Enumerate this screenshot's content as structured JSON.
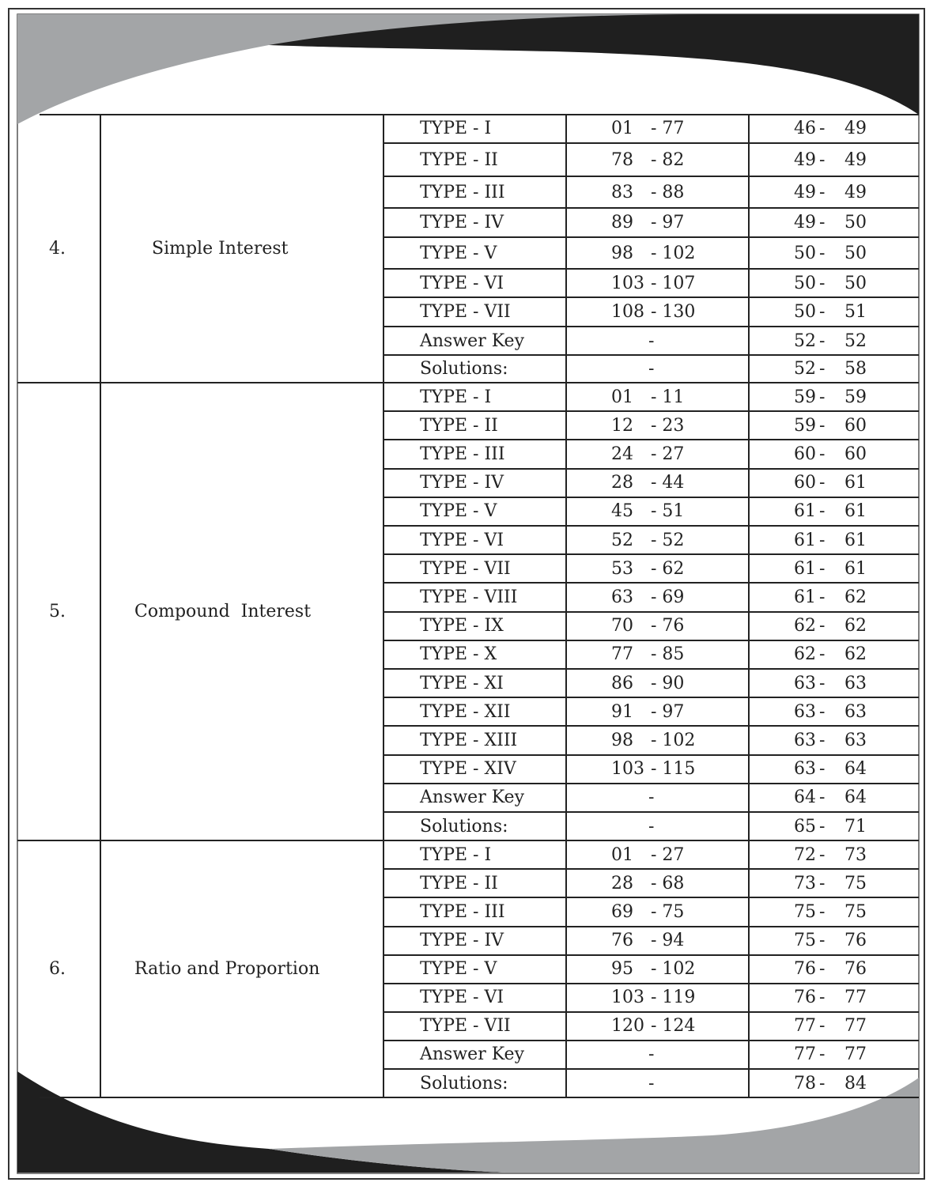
{
  "colors": {
    "dark": "#1f1f1f",
    "gray": "#a3a5a7",
    "line": "#222222"
  },
  "sections": [
    {
      "number": "4.",
      "title": "Simple Interest",
      "rows": [
        {
          "type": "TYPE - I",
          "questions": [
            "01",
            "77"
          ],
          "pages": [
            "46",
            "49"
          ]
        },
        {
          "type": "TYPE - II",
          "questions": [
            "78",
            "82"
          ],
          "pages": [
            "49",
            "49"
          ]
        },
        {
          "type": "TYPE - III",
          "questions": [
            "83",
            "88"
          ],
          "pages": [
            "49",
            "49"
          ]
        },
        {
          "type": "TYPE - IV",
          "questions": [
            "89",
            "97"
          ],
          "pages": [
            "49",
            "50"
          ]
        },
        {
          "type": "TYPE - V",
          "questions": [
            "98",
            "102"
          ],
          "pages": [
            "50",
            "50"
          ]
        },
        {
          "type": "TYPE - VI",
          "questions": [
            "103",
            "107"
          ],
          "pages": [
            "50",
            "50"
          ]
        },
        {
          "type": "TYPE - VII",
          "questions": [
            "108",
            "130"
          ],
          "pages": [
            "50",
            "51"
          ]
        },
        {
          "type": "Answer Key",
          "questions": "-",
          "pages": [
            "52",
            "52"
          ]
        },
        {
          "type": "Solutions:",
          "questions": "-",
          "pages": [
            "52",
            "58"
          ]
        }
      ]
    },
    {
      "number": "5.",
      "title": "Compound  Interest",
      "rows": [
        {
          "type": "TYPE - I",
          "questions": [
            "01",
            "11"
          ],
          "pages": [
            "59",
            "59"
          ]
        },
        {
          "type": "TYPE - II",
          "questions": [
            "12",
            "23"
          ],
          "pages": [
            "59",
            "60"
          ]
        },
        {
          "type": "TYPE - III",
          "questions": [
            "24",
            "27"
          ],
          "pages": [
            "60",
            "60"
          ]
        },
        {
          "type": "TYPE - IV",
          "questions": [
            "28",
            "44"
          ],
          "pages": [
            "60",
            "61"
          ]
        },
        {
          "type": "TYPE - V",
          "questions": [
            "45",
            "51"
          ],
          "pages": [
            "61",
            "61"
          ]
        },
        {
          "type": "TYPE - VI",
          "questions": [
            "52",
            "52"
          ],
          "pages": [
            "61",
            "61"
          ]
        },
        {
          "type": "TYPE - VII",
          "questions": [
            "53",
            "62"
          ],
          "pages": [
            "61",
            "61"
          ]
        },
        {
          "type": "TYPE - VIII",
          "questions": [
            "63",
            "69"
          ],
          "pages": [
            "61",
            "62"
          ]
        },
        {
          "type": "TYPE - IX",
          "questions": [
            "70",
            "76"
          ],
          "pages": [
            "62",
            "62"
          ]
        },
        {
          "type": "TYPE - X",
          "questions": [
            "77",
            "85"
          ],
          "pages": [
            "62",
            "62"
          ]
        },
        {
          "type": "TYPE - XI",
          "questions": [
            "86",
            "90"
          ],
          "pages": [
            "63",
            "63"
          ]
        },
        {
          "type": "TYPE - XII",
          "questions": [
            "91",
            "97"
          ],
          "pages": [
            "63",
            "63"
          ]
        },
        {
          "type": "TYPE - XIII",
          "questions": [
            "98",
            "102"
          ],
          "pages": [
            "63",
            "63"
          ]
        },
        {
          "type": "TYPE - XIV",
          "questions": [
            "103",
            "115"
          ],
          "pages": [
            "63",
            "64"
          ]
        },
        {
          "type": "Answer Key",
          "questions": "-",
          "pages": [
            "64",
            "64"
          ]
        },
        {
          "type": "Solutions:",
          "questions": "-",
          "pages": [
            "65",
            "71"
          ]
        }
      ]
    },
    {
      "number": "6.",
      "title": "Ratio and Proportion",
      "rows": [
        {
          "type": "TYPE - I",
          "questions": [
            "01",
            "27"
          ],
          "pages": [
            "72",
            "73"
          ]
        },
        {
          "type": "TYPE - II",
          "questions": [
            "28",
            "68"
          ],
          "pages": [
            "73",
            "75"
          ]
        },
        {
          "type": "TYPE - III",
          "questions": [
            "69",
            "75"
          ],
          "pages": [
            "75",
            "75"
          ]
        },
        {
          "type": "TYPE - IV",
          "questions": [
            "76",
            "94"
          ],
          "pages": [
            "75",
            "76"
          ]
        },
        {
          "type": "TYPE - V",
          "questions": [
            "95",
            "102"
          ],
          "pages": [
            "76",
            "76"
          ]
        },
        {
          "type": "TYPE - VI",
          "questions": [
            "103",
            "119"
          ],
          "pages": [
            "76",
            "77"
          ]
        },
        {
          "type": "TYPE - VII",
          "questions": [
            "120",
            "124"
          ],
          "pages": [
            "77",
            "77"
          ]
        },
        {
          "type": "Answer Key",
          "questions": "-",
          "pages": [
            "77",
            "77"
          ]
        },
        {
          "type": "Solutions:",
          "questions": "-",
          "pages": [
            "78",
            "84"
          ]
        }
      ]
    }
  ]
}
